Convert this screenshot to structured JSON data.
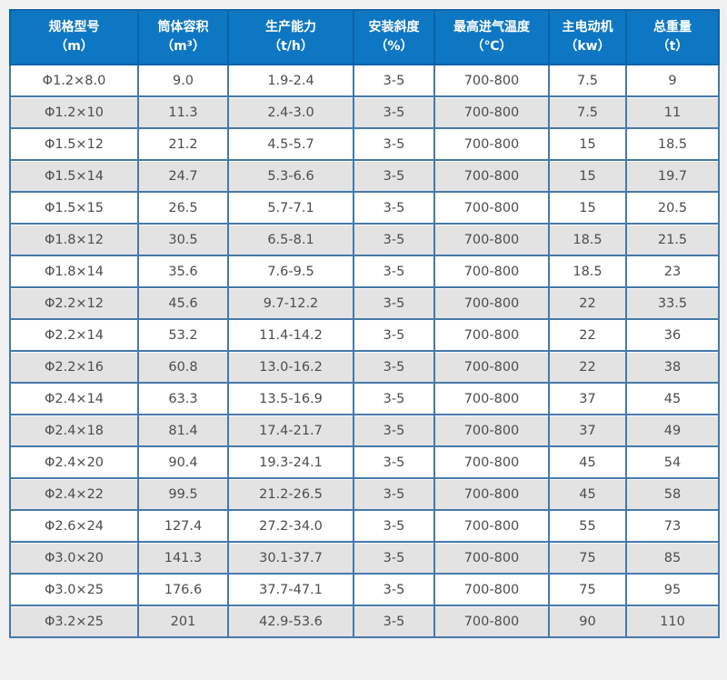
{
  "colors": {
    "page_bg": "#f0f0f0",
    "header_bg": "#0e77c3",
    "header_border": "#0b62a6",
    "header_text": "#ffffff",
    "body_border": "#4579a9",
    "row_bg": "#ffffff",
    "row_alt_bg": "#e3e3e3",
    "cell_text": "#4c4c4c"
  },
  "chart_data": {
    "type": "table",
    "title": "",
    "columns": [
      {
        "label": "规格型号",
        "unit": "（m）"
      },
      {
        "label": "筒体容积",
        "unit": "（m³）"
      },
      {
        "label": "生产能力",
        "unit": "（t/h）"
      },
      {
        "label": "安装斜度",
        "unit": "（%）"
      },
      {
        "label": "最高进气温度",
        "unit": "（℃）"
      },
      {
        "label": "主电动机",
        "unit": "（kw）"
      },
      {
        "label": "总重量",
        "unit": "（t）"
      }
    ],
    "rows": [
      [
        "Φ1.2×8.0",
        "9.0",
        "1.9-2.4",
        "3-5",
        "700-800",
        "7.5",
        "9"
      ],
      [
        "Φ1.2×10",
        "11.3",
        "2.4-3.0",
        "3-5",
        "700-800",
        "7.5",
        "11"
      ],
      [
        "Φ1.5×12",
        "21.2",
        "4.5-5.7",
        "3-5",
        "700-800",
        "15",
        "18.5"
      ],
      [
        "Φ1.5×14",
        "24.7",
        "5.3-6.6",
        "3-5",
        "700-800",
        "15",
        "19.7"
      ],
      [
        "Φ1.5×15",
        "26.5",
        "5.7-7.1",
        "3-5",
        "700-800",
        "15",
        "20.5"
      ],
      [
        "Φ1.8×12",
        "30.5",
        "6.5-8.1",
        "3-5",
        "700-800",
        "18.5",
        "21.5"
      ],
      [
        "Φ1.8×14",
        "35.6",
        "7.6-9.5",
        "3-5",
        "700-800",
        "18.5",
        "23"
      ],
      [
        "Φ2.2×12",
        "45.6",
        "9.7-12.2",
        "3-5",
        "700-800",
        "22",
        "33.5"
      ],
      [
        "Φ2.2×14",
        "53.2",
        "11.4-14.2",
        "3-5",
        "700-800",
        "22",
        "36"
      ],
      [
        "Φ2.2×16",
        "60.8",
        "13.0-16.2",
        "3-5",
        "700-800",
        "22",
        "38"
      ],
      [
        "Φ2.4×14",
        "63.3",
        "13.5-16.9",
        "3-5",
        "700-800",
        "37",
        "45"
      ],
      [
        "Φ2.4×18",
        "81.4",
        "17.4-21.7",
        "3-5",
        "700-800",
        "37",
        "49"
      ],
      [
        "Φ2.4×20",
        "90.4",
        "19.3-24.1",
        "3-5",
        "700-800",
        "45",
        "54"
      ],
      [
        "Φ2.4×22",
        "99.5",
        "21.2-26.5",
        "3-5",
        "700-800",
        "45",
        "58"
      ],
      [
        "Φ2.6×24",
        "127.4",
        "27.2-34.0",
        "3-5",
        "700-800",
        "55",
        "73"
      ],
      [
        "Φ3.0×20",
        "141.3",
        "30.1-37.7",
        "3-5",
        "700-800",
        "75",
        "85"
      ],
      [
        "Φ3.0×25",
        "176.6",
        "37.7-47.1",
        "3-5",
        "700-800",
        "75",
        "95"
      ],
      [
        "Φ3.2×25",
        "201",
        "42.9-53.6",
        "3-5",
        "700-800",
        "90",
        "110"
      ]
    ]
  }
}
